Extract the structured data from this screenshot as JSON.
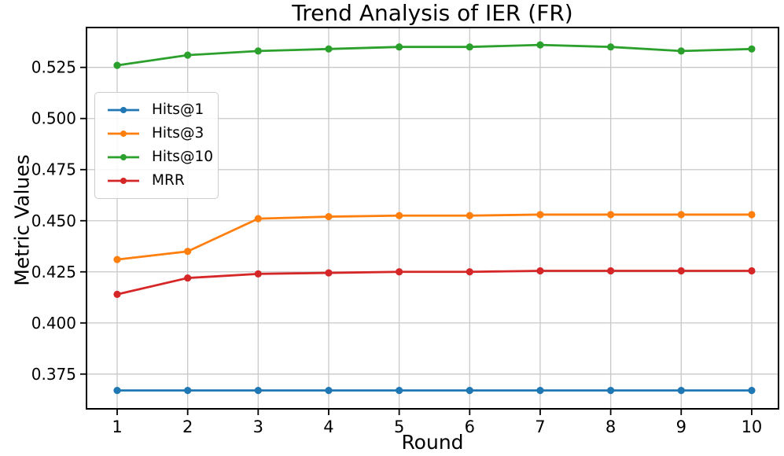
{
  "chart_data": {
    "type": "line",
    "title": "Trend Analysis of IER (FR)",
    "xlabel": "Round",
    "ylabel": "Metric Values",
    "x": [
      1,
      2,
      3,
      4,
      5,
      6,
      7,
      8,
      9,
      10
    ],
    "series": [
      {
        "name": "Hits@1",
        "color": "#1f77b4",
        "values": [
          0.367,
          0.367,
          0.367,
          0.367,
          0.367,
          0.367,
          0.367,
          0.367,
          0.367,
          0.367
        ]
      },
      {
        "name": "Hits@3",
        "color": "#ff7f0e",
        "values": [
          0.431,
          0.435,
          0.451,
          0.452,
          0.4525,
          0.4525,
          0.453,
          0.453,
          0.453,
          0.453
        ]
      },
      {
        "name": "Hits@10",
        "color": "#2ca02c",
        "values": [
          0.526,
          0.531,
          0.533,
          0.534,
          0.535,
          0.535,
          0.536,
          0.535,
          0.533,
          0.534
        ]
      },
      {
        "name": "MRR",
        "color": "#d62728",
        "values": [
          0.414,
          0.422,
          0.424,
          0.4245,
          0.425,
          0.425,
          0.4255,
          0.4255,
          0.4255,
          0.4255
        ]
      }
    ],
    "xticks": [
      1,
      2,
      3,
      4,
      5,
      6,
      7,
      8,
      9,
      10
    ],
    "xtick_labels": [
      "1",
      "2",
      "3",
      "4",
      "5",
      "6",
      "7",
      "8",
      "9",
      "10"
    ],
    "yticks": [
      0.375,
      0.4,
      0.425,
      0.45,
      0.475,
      0.5,
      0.525
    ],
    "ytick_labels": [
      "0.375",
      "0.400",
      "0.425",
      "0.450",
      "0.475",
      "0.500",
      "0.525"
    ],
    "xlim": [
      0.565,
      10.38
    ],
    "ylim": [
      0.358,
      0.5445
    ],
    "grid": true,
    "grid_color": "#c8c8c8",
    "spine_color": "#000000",
    "background_color": "#ffffff",
    "legend_position": "upper-left",
    "legend_entries": [
      "Hits@1",
      "Hits@3",
      "Hits@10",
      "MRR"
    ]
  }
}
